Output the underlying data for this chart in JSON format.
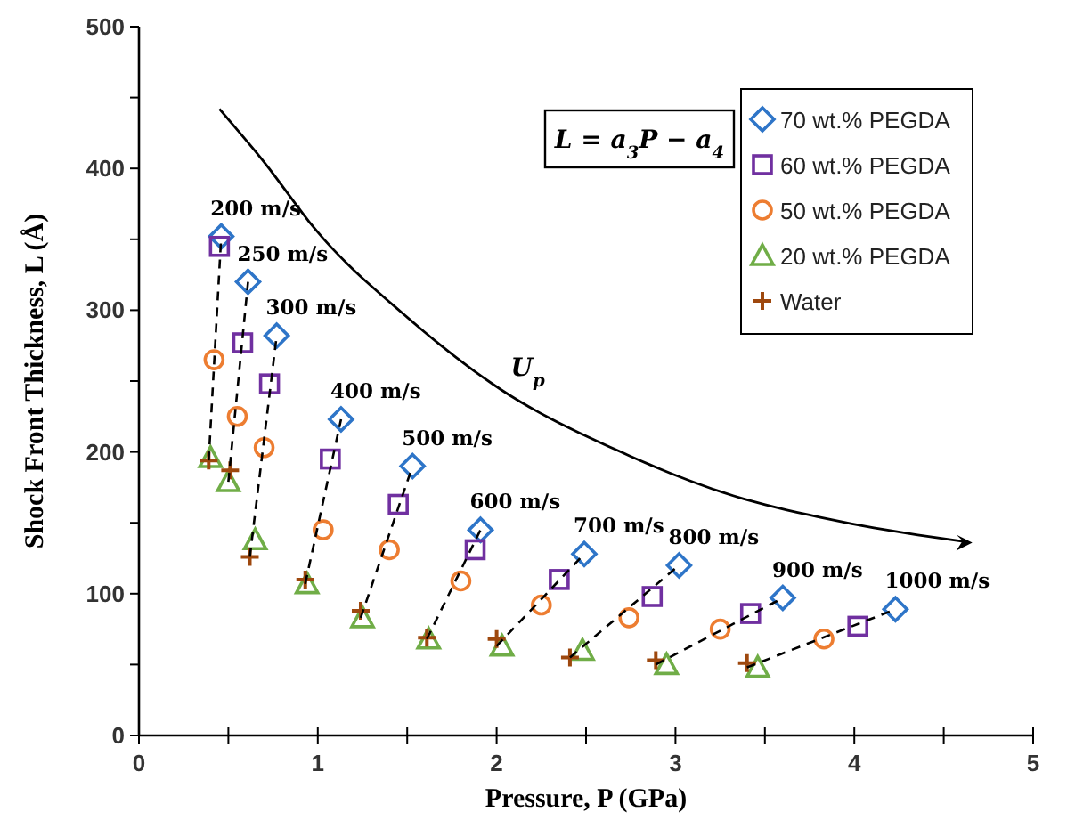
{
  "chart_data": {
    "type": "scatter",
    "xlabel": "Pressure, P (GPa)",
    "ylabel": "Shock Front Thickness, L (Å)",
    "xlim": [
      0,
      5
    ],
    "xticks": [
      0,
      {
        "value": 0.5,
        "label": null
      },
      1,
      {
        "value": 1.5,
        "label": null
      },
      2,
      {
        "value": 2.5,
        "label": null
      },
      3,
      {
        "value": 3.5,
        "label": null
      },
      4,
      {
        "value": 4.5,
        "label": null
      },
      5
    ],
    "ylim": [
      0,
      500
    ],
    "yticks": [
      0,
      {
        "value": 50,
        "label": null
      },
      100,
      {
        "value": 150,
        "label": null
      },
      200,
      {
        "value": 250,
        "label": null
      },
      300,
      {
        "value": 350,
        "label": null
      },
      400,
      {
        "value": 450,
        "label": null
      },
      500
    ],
    "grid": false,
    "legend": "top right",
    "series": [
      {
        "name": "70 wt.% PEGDA",
        "color": "#2e75c8",
        "marker": "diamond",
        "x": [
          0.46,
          0.61,
          0.77,
          1.13,
          1.53,
          1.91,
          2.49,
          3.02,
          3.6,
          4.23
        ],
        "values": [
          352,
          320,
          282,
          223,
          190,
          145,
          128,
          120,
          97,
          89
        ]
      },
      {
        "name": "60 wt.% PEGDA",
        "color": "#7030a0",
        "marker": "square",
        "x": [
          0.45,
          0.58,
          0.73,
          1.07,
          1.45,
          1.88,
          2.35,
          2.87,
          3.42,
          4.02
        ],
        "values": [
          345,
          277,
          248,
          195,
          163,
          131,
          110,
          98,
          86,
          77
        ]
      },
      {
        "name": "50 wt.% PEGDA",
        "color": "#ed7d31",
        "marker": "circle",
        "x": [
          0.42,
          0.55,
          0.7,
          1.03,
          1.4,
          1.8,
          2.25,
          2.74,
          3.25,
          3.83
        ],
        "values": [
          265,
          225,
          203,
          145,
          131,
          109,
          92,
          83,
          75,
          68
        ]
      },
      {
        "name": "20 wt.% PEGDA",
        "color": "#70ad47",
        "marker": "triangle",
        "x": [
          0.4,
          0.5,
          0.65,
          0.94,
          1.25,
          1.62,
          2.03,
          2.48,
          2.95,
          3.46
        ],
        "values": [
          196,
          179,
          138,
          107,
          83,
          68,
          63,
          60,
          50,
          48
        ]
      },
      {
        "name": "Water",
        "color": "#9e480e",
        "marker": "cross",
        "x": [
          0.39,
          0.51,
          0.62,
          0.93,
          1.24,
          1.61,
          2.0,
          2.41,
          2.89,
          3.4
        ],
        "values": [
          194,
          187,
          126,
          110,
          88,
          69,
          68,
          55,
          53,
          51
        ]
      },
      {
        "type": "line",
        "color": "#000000",
        "line_style": "dashed",
        "marker": "none",
        "x": [
          0.39,
          0.46
        ],
        "values": [
          194,
          352
        ]
      },
      {
        "type": "line",
        "color": "#000000",
        "line_style": "dashed",
        "marker": "none",
        "x": [
          0.5,
          0.61
        ],
        "values": [
          179,
          320
        ]
      },
      {
        "type": "line",
        "color": "#000000",
        "line_style": "dashed",
        "marker": "none",
        "x": [
          0.62,
          0.77
        ],
        "values": [
          126,
          282
        ]
      },
      {
        "type": "line",
        "color": "#000000",
        "line_style": "dashed",
        "marker": "none",
        "x": [
          0.93,
          1.13
        ],
        "values": [
          107,
          223
        ]
      },
      {
        "type": "line",
        "color": "#000000",
        "line_style": "dashed",
        "marker": "none",
        "x": [
          1.24,
          1.53
        ],
        "values": [
          83,
          190
        ]
      },
      {
        "type": "line",
        "color": "#000000",
        "line_style": "dashed",
        "marker": "none",
        "x": [
          1.61,
          1.91
        ],
        "values": [
          68,
          145
        ]
      },
      {
        "type": "line",
        "color": "#000000",
        "line_style": "dashed",
        "marker": "none",
        "x": [
          2.0,
          2.49
        ],
        "values": [
          63,
          128
        ]
      },
      {
        "type": "line",
        "color": "#000000",
        "line_style": "dashed",
        "marker": "none",
        "x": [
          2.41,
          3.02
        ],
        "values": [
          55,
          120
        ]
      },
      {
        "type": "line",
        "color": "#000000",
        "line_style": "dashed",
        "marker": "none",
        "x": [
          2.89,
          3.6
        ],
        "values": [
          50,
          97
        ]
      },
      {
        "type": "line",
        "color": "#000000",
        "line_style": "dashed",
        "marker": "none",
        "x": [
          3.4,
          4.23
        ],
        "values": [
          48,
          89
        ]
      }
    ],
    "annotations": [
      "L = a$_{3}$P − a$_{4}$",
      "200 m/s",
      "250 m/s",
      "300 m/s",
      "400 m/s",
      "500 m/s",
      "600 m/s",
      "700 m/s",
      "800 m/s",
      "900 m/s",
      "1000 m/s",
      "U$_{p}$"
    ]
  }
}
